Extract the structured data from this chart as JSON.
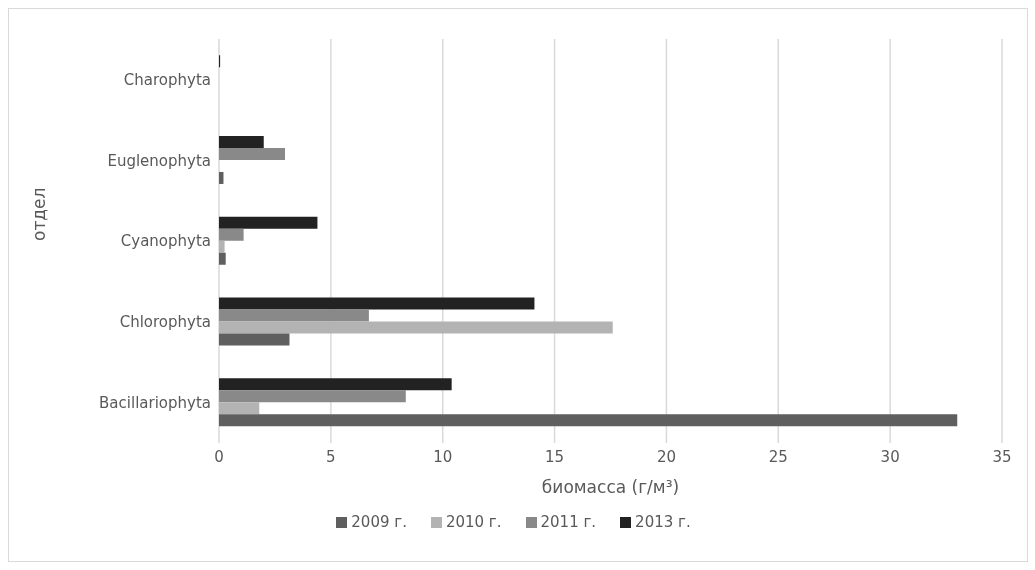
{
  "chart_data": {
    "type": "bar",
    "orientation": "horizontal",
    "xlabel": "биомасса (г/м³)",
    "ylabel": "отдел",
    "categories": [
      "Charophyta",
      "Euglenophyta",
      "Cyanophyta",
      "Chlorophyta",
      "Bacillariophyta"
    ],
    "series": [
      {
        "name": "2013 г.",
        "color": "#222222",
        "values": [
          0.05,
          2.0,
          4.4,
          14.1,
          10.4
        ]
      },
      {
        "name": "2011 г.",
        "color": "#898989",
        "values": [
          0,
          2.95,
          1.1,
          6.7,
          8.35
        ]
      },
      {
        "name": "2010 г.",
        "color": "#b3b3b3",
        "values": [
          0,
          0,
          0.25,
          17.6,
          1.8
        ]
      },
      {
        "name": "2009 г.",
        "color": "#5f5f5f",
        "values": [
          0,
          0.2,
          0.3,
          3.15,
          33.0
        ]
      }
    ],
    "xlim": [
      0,
      35
    ],
    "xticks": [
      0,
      5,
      10,
      15,
      20,
      25,
      30,
      35
    ],
    "grid": "x",
    "legend": "bottom"
  }
}
